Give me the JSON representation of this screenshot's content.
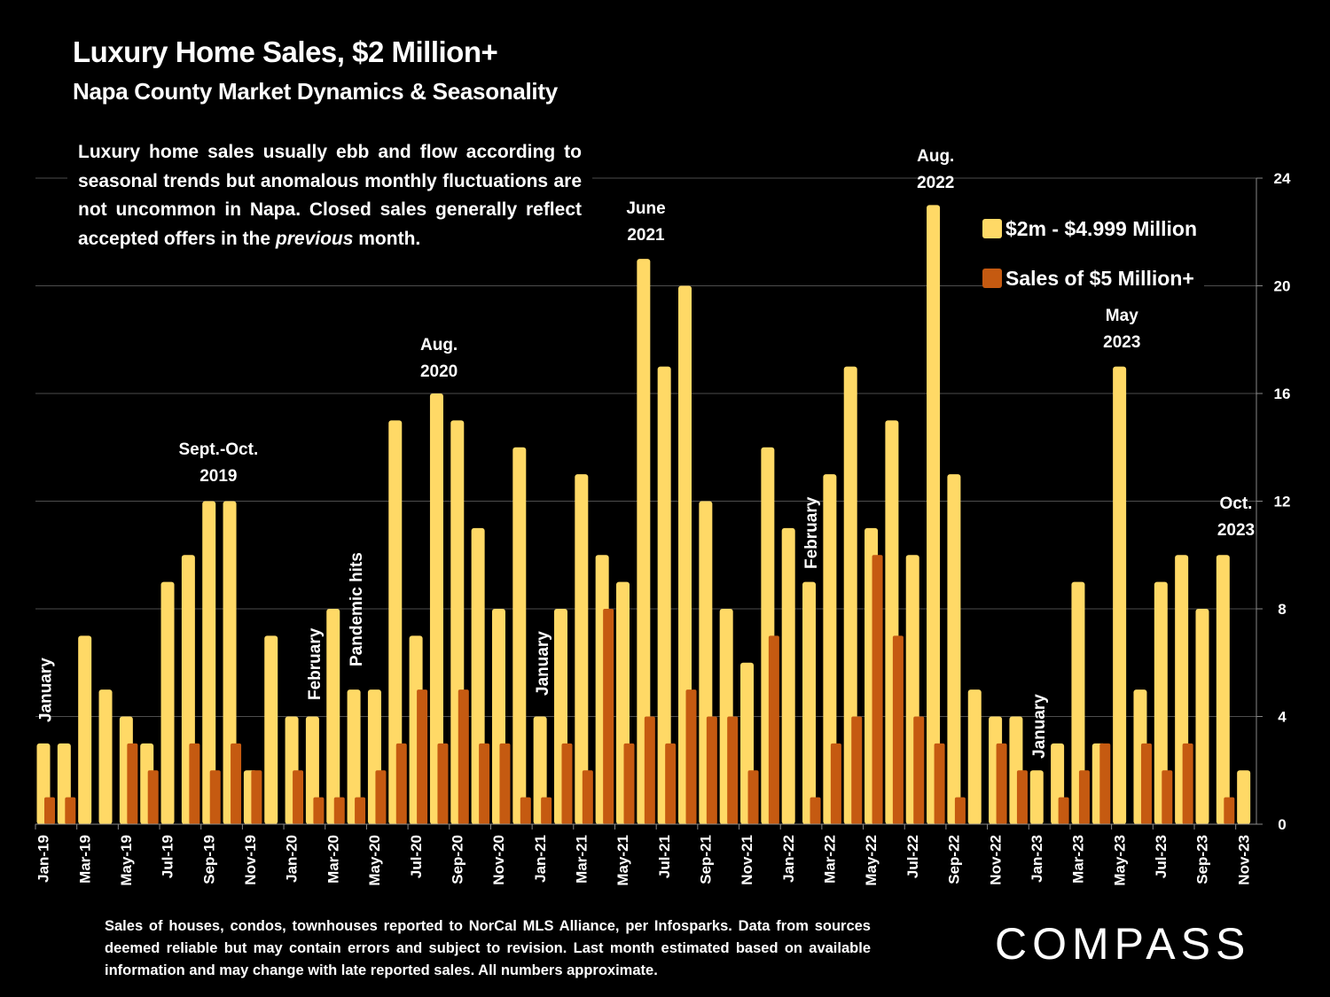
{
  "header": {
    "title": "Luxury Home Sales, $2 Million+",
    "subtitle": "Napa County Market Dynamics & Seasonality"
  },
  "description": {
    "part1": "Luxury home sales usually ebb and flow according to seasonal trends but anomalous monthly fluctuations are not uncommon in Napa.  Closed sales generally reflect accepted offers in the ",
    "emphasis": "previous",
    "part2": " month."
  },
  "footnote": "Sales of houses, condos, townhouses reported to NorCal MLS Alliance, per Infosparks. Data from sources deemed reliable but may contain errors and subject to revision. Last month estimated based on available information and may change with late reported sales. All numbers approximate.",
  "logo": "COMPASS",
  "colors": {
    "series1": "#FFD966",
    "series2": "#C55A11",
    "grid": "#595959",
    "background": "#000000"
  },
  "chart_data": {
    "type": "bar",
    "title": "Luxury Home Sales, $2 Million+",
    "subtitle": "Napa County Market Dynamics & Seasonality",
    "xlabel": "",
    "ylabel": "",
    "ylim": [
      0,
      24
    ],
    "yticks": [
      0,
      4,
      8,
      12,
      16,
      20,
      24
    ],
    "y_axis_side": "right",
    "grid": true,
    "legend_position": "top-right",
    "categories": [
      "Jan-19",
      "Feb-19",
      "Mar-19",
      "Apr-19",
      "May-19",
      "Jun-19",
      "Jul-19",
      "Aug-19",
      "Sep-19",
      "Oct-19",
      "Nov-19",
      "Dec-19",
      "Jan-20",
      "Feb-20",
      "Mar-20",
      "Apr-20",
      "May-20",
      "Jun-20",
      "Jul-20",
      "Aug-20",
      "Sep-20",
      "Oct-20",
      "Nov-20",
      "Dec-20",
      "Jan-21",
      "Feb-21",
      "Mar-21",
      "Apr-21",
      "May-21",
      "Jun-21",
      "Jul-21",
      "Aug-21",
      "Sep-21",
      "Oct-21",
      "Nov-21",
      "Dec-21",
      "Jan-22",
      "Feb-22",
      "Mar-22",
      "Apr-22",
      "May-22",
      "Jun-22",
      "Jul-22",
      "Aug-22",
      "Sep-22",
      "Oct-22",
      "Nov-22",
      "Dec-22",
      "Jan-23",
      "Feb-23",
      "Mar-23",
      "Apr-23",
      "May-23",
      "Jun-23",
      "Jul-23",
      "Aug-23",
      "Sep-23",
      "Oct-23",
      "Nov-23"
    ],
    "tick_labels_every": 2,
    "series": [
      {
        "name": "$2m - $4.999 Million",
        "color": "#FFD966",
        "values": [
          3,
          3,
          7,
          5,
          4,
          3,
          9,
          10,
          12,
          12,
          2,
          7,
          4,
          4,
          8,
          5,
          5,
          15,
          7,
          16,
          15,
          11,
          8,
          14,
          4,
          8,
          13,
          10,
          9,
          21,
          17,
          20,
          12,
          8,
          6,
          14,
          11,
          9,
          13,
          17,
          11,
          15,
          10,
          23,
          13,
          5,
          4,
          4,
          2,
          3,
          9,
          3,
          17,
          5,
          9,
          10,
          8,
          10,
          2
        ]
      },
      {
        "name": "Sales of $5 Million+",
        "color": "#C55A11",
        "values": [
          1,
          1,
          0,
          0,
          3,
          2,
          0,
          3,
          2,
          3,
          2,
          0,
          2,
          1,
          1,
          1,
          2,
          3,
          5,
          3,
          5,
          3,
          3,
          1,
          1,
          3,
          2,
          8,
          3,
          4,
          3,
          5,
          4,
          4,
          2,
          7,
          0,
          1,
          3,
          4,
          10,
          7,
          4,
          3,
          1,
          0,
          3,
          2,
          0,
          1,
          2,
          3,
          0,
          3,
          2,
          3,
          0,
          1,
          0
        ]
      }
    ],
    "annotations": [
      {
        "text": "January",
        "category": "Jan-19",
        "orientation": "vertical"
      },
      {
        "text": "Sept.-Oct.\n2019",
        "category": "Sep-19",
        "orientation": "horizontal"
      },
      {
        "text": "February",
        "category": "Feb-20",
        "orientation": "vertical"
      },
      {
        "text": "Pandemic hits",
        "category": "Apr-20",
        "orientation": "vertical"
      },
      {
        "text": "Aug.\n2020",
        "category": "Aug-20",
        "orientation": "horizontal"
      },
      {
        "text": "January",
        "category": "Jan-21",
        "orientation": "vertical"
      },
      {
        "text": "June\n2021",
        "category": "Jun-21",
        "orientation": "horizontal"
      },
      {
        "text": "February",
        "category": "Feb-22",
        "orientation": "vertical"
      },
      {
        "text": "Aug.\n2022",
        "category": "Aug-22",
        "orientation": "horizontal"
      },
      {
        "text": "January",
        "category": "Jan-23",
        "orientation": "vertical"
      },
      {
        "text": "May\n2023",
        "category": "May-23",
        "orientation": "horizontal"
      },
      {
        "text": "Oct.\n2023",
        "category": "Oct-23",
        "orientation": "horizontal"
      }
    ]
  }
}
